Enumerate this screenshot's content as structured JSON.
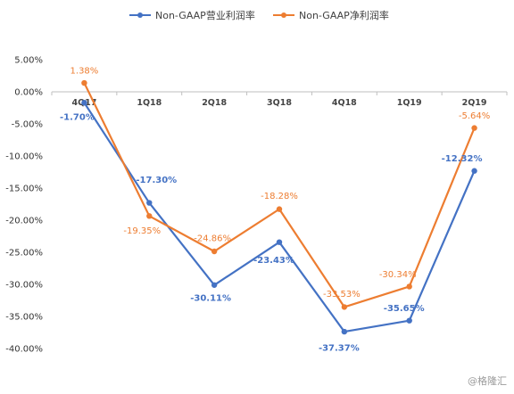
{
  "chart_data": {
    "type": "line",
    "categories": [
      "4Q17",
      "1Q18",
      "2Q18",
      "3Q18",
      "4Q18",
      "1Q19",
      "2Q19"
    ],
    "series": [
      {
        "name": "Non-GAAP营业利润率",
        "color": "#4472C4",
        "values": [
          -1.7,
          -17.3,
          -30.11,
          -23.43,
          -37.37,
          -35.65,
          -12.32
        ],
        "labels": [
          "-1.70%",
          "-17.30%",
          "-30.11%",
          "-23.43%",
          "-37.37%",
          "-35.65%",
          "-12.32%"
        ]
      },
      {
        "name": "Non-GAAP净利润率",
        "color": "#ED7D31",
        "values": [
          1.38,
          -19.35,
          -24.86,
          -18.28,
          -33.53,
          -30.34,
          -5.64
        ],
        "labels": [
          "1.38%",
          "-19.35%",
          "-24.86%",
          "-18.28%",
          "-33.53%",
          "-30.34%",
          "-5.64%"
        ]
      }
    ],
    "y_ticks": [
      "5.00%",
      "0.00%",
      "-5.00%",
      "-10.00%",
      "-15.00%",
      "-20.00%",
      "-25.00%",
      "-30.00%",
      "-35.00%",
      "-40.00%"
    ],
    "ylim": [
      -40,
      5
    ],
    "grid": false,
    "legend": "top-center",
    "watermark": "@格隆汇"
  }
}
